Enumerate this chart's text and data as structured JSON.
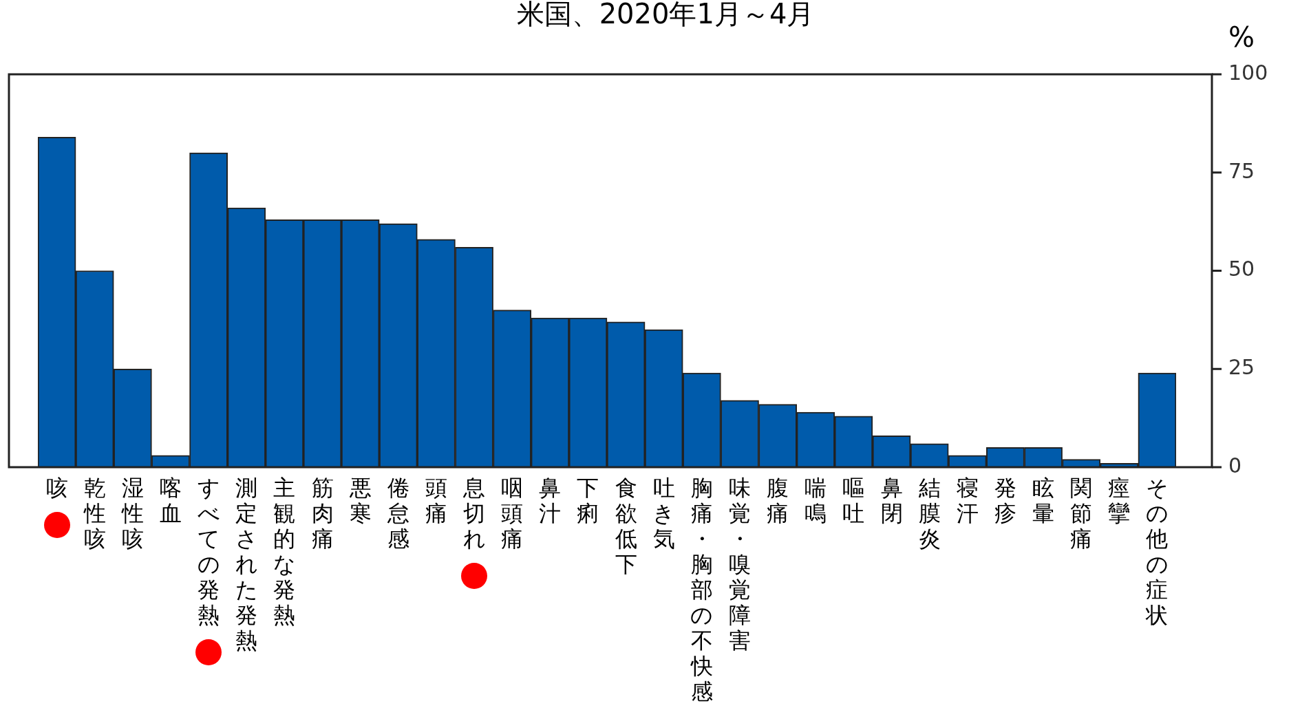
{
  "chart_data": {
    "type": "bar",
    "title": "米国、2020年1月～4月",
    "ylabel": "%",
    "categories": [
      "咳",
      "乾性咳",
      "湿性咳",
      "喀血",
      "すべての発熱",
      "測定された発熱",
      "主観的な発熱",
      "筋肉痛",
      "悪寒",
      "倦怠感",
      "頭痛",
      "息切れ",
      "咽頭痛",
      "鼻汁",
      "下痢",
      "食欲低下",
      "吐き気",
      "胸痛・胸部の不快感",
      "味覚・嗅覚障害",
      "腹痛",
      "喘鳴",
      "嘔吐",
      "鼻閉",
      "結膜炎",
      "寝汗",
      "発疹",
      "眩暈",
      "関節痛",
      "痙攣",
      "その他の症状"
    ],
    "values": [
      84,
      50,
      25,
      3,
      80,
      66,
      63,
      63,
      63,
      62,
      58,
      56,
      40,
      38,
      38,
      37,
      35,
      24,
      17,
      16,
      14,
      13,
      8,
      6,
      3,
      5,
      5,
      2,
      1,
      24
    ],
    "color": "#005bab",
    "ylim": [
      0,
      100
    ],
    "yticks": [
      0,
      25,
      50,
      75,
      100
    ],
    "grid": false,
    "legend": false
  }
}
